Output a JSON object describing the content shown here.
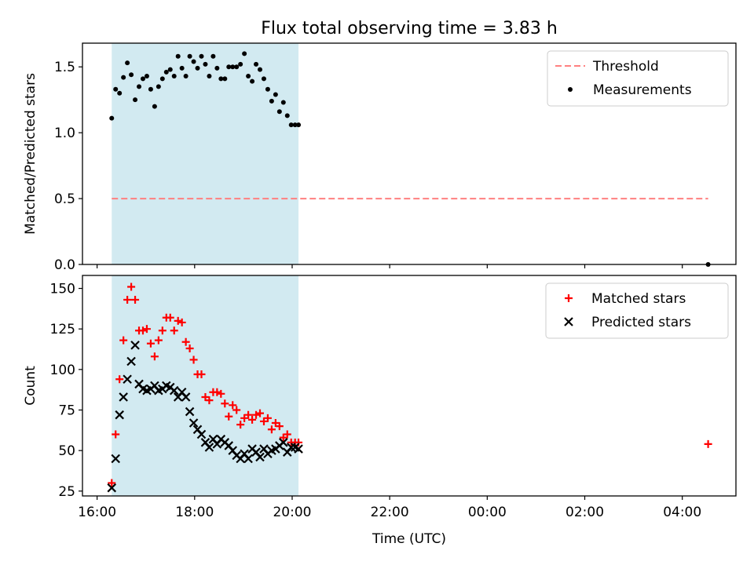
{
  "title": "Flux total observing time = 3.83 h",
  "colors": {
    "shade": "#add8e6",
    "threshold": "#ff8080",
    "measurements": "#000000",
    "matched": "#ff0000",
    "predicted": "#000000"
  },
  "chart_data": [
    {
      "type": "scatter",
      "panel": "top",
      "xlabel": "",
      "ylabel": "Matched/Predicted stars",
      "xlim": [
        15.7,
        29.1
      ],
      "ylim": [
        0.0,
        1.68
      ],
      "yticks": [
        0.0,
        0.5,
        1.0,
        1.5
      ],
      "ytick_labels": [
        "0.0",
        "0.5",
        "1.0",
        "1.5"
      ],
      "xticks": [
        16,
        18,
        20,
        22,
        24,
        26,
        28
      ],
      "xtick_labels": [
        "",
        "",
        "",
        "",
        "",
        "",
        ""
      ],
      "shaded_span": [
        16.3,
        20.13
      ],
      "legend": {
        "loc": "upper right",
        "entries": [
          "Threshold",
          "Measurements"
        ]
      },
      "series": [
        {
          "name": "Threshold",
          "style": "dashed-line",
          "x": [
            16.3,
            28.53
          ],
          "y": [
            0.5,
            0.5
          ]
        },
        {
          "name": "Measurements",
          "style": "dot",
          "x": [
            16.3,
            16.38,
            16.46,
            16.54,
            16.62,
            16.7,
            16.78,
            16.86,
            16.94,
            17.02,
            17.1,
            17.18,
            17.26,
            17.34,
            17.42,
            17.5,
            17.58,
            17.66,
            17.74,
            17.82,
            17.9,
            17.98,
            18.06,
            18.14,
            18.22,
            18.3,
            18.38,
            18.46,
            18.54,
            18.62,
            18.7,
            18.78,
            18.86,
            18.94,
            19.02,
            19.1,
            19.18,
            19.26,
            19.34,
            19.42,
            19.5,
            19.58,
            19.66,
            19.74,
            19.82,
            19.9,
            19.98,
            20.06,
            20.13,
            28.53
          ],
          "y": [
            1.11,
            1.33,
            1.3,
            1.42,
            1.53,
            1.44,
            1.25,
            1.35,
            1.41,
            1.43,
            1.33,
            1.2,
            1.35,
            1.41,
            1.46,
            1.48,
            1.43,
            1.58,
            1.49,
            1.43,
            1.58,
            1.54,
            1.49,
            1.58,
            1.52,
            1.43,
            1.58,
            1.49,
            1.41,
            1.41,
            1.5,
            1.5,
            1.5,
            1.52,
            1.6,
            1.43,
            1.39,
            1.52,
            1.48,
            1.41,
            1.33,
            1.24,
            1.29,
            1.16,
            1.23,
            1.13,
            1.06,
            1.06,
            1.06,
            0.0
          ]
        }
      ]
    },
    {
      "type": "scatter",
      "panel": "bottom",
      "xlabel": "Time (UTC)",
      "ylabel": "Count",
      "xlim": [
        15.7,
        29.1
      ],
      "ylim": [
        22,
        158
      ],
      "yticks": [
        25,
        50,
        75,
        100,
        125,
        150
      ],
      "ytick_labels": [
        "25",
        "50",
        "75",
        "100",
        "125",
        "150"
      ],
      "xticks": [
        16,
        18,
        20,
        22,
        24,
        26,
        28
      ],
      "xtick_labels": [
        "16:00",
        "18:00",
        "20:00",
        "22:00",
        "00:00",
        "02:00",
        "04:00"
      ],
      "shaded_span": [
        16.3,
        20.13
      ],
      "legend": {
        "loc": "upper right",
        "entries": [
          "Matched stars",
          "Predicted stars"
        ]
      },
      "series": [
        {
          "name": "Matched stars",
          "marker": "plus",
          "x": [
            16.3,
            16.38,
            16.46,
            16.54,
            16.62,
            16.7,
            16.78,
            16.86,
            16.94,
            17.02,
            17.1,
            17.18,
            17.26,
            17.34,
            17.42,
            17.5,
            17.58,
            17.66,
            17.74,
            17.82,
            17.9,
            17.98,
            18.06,
            18.14,
            18.22,
            18.3,
            18.38,
            18.46,
            18.54,
            18.62,
            18.7,
            18.78,
            18.86,
            18.94,
            19.02,
            19.1,
            19.18,
            19.26,
            19.34,
            19.42,
            19.5,
            19.58,
            19.66,
            19.74,
            19.82,
            19.9,
            19.98,
            20.06,
            20.13,
            28.53
          ],
          "y": [
            30,
            60,
            94,
            118,
            143,
            151,
            143,
            124,
            124,
            125,
            116,
            108,
            118,
            124,
            132,
            132,
            124,
            130,
            129,
            117,
            113,
            106,
            97,
            97,
            83,
            81,
            86,
            86,
            85,
            79,
            71,
            78,
            75,
            66,
            70,
            72,
            69,
            72,
            73,
            68,
            70,
            63,
            67,
            65,
            58,
            60,
            55,
            55,
            55,
            54
          ]
        },
        {
          "name": "Predicted stars",
          "marker": "x",
          "x": [
            16.3,
            16.38,
            16.46,
            16.54,
            16.62,
            16.7,
            16.78,
            16.86,
            16.94,
            17.02,
            17.1,
            17.18,
            17.26,
            17.34,
            17.42,
            17.5,
            17.58,
            17.66,
            17.74,
            17.82,
            17.9,
            17.98,
            18.06,
            18.14,
            18.22,
            18.3,
            18.38,
            18.46,
            18.54,
            18.62,
            18.7,
            18.78,
            18.86,
            18.94,
            19.02,
            19.1,
            19.18,
            19.26,
            19.34,
            19.42,
            19.5,
            19.58,
            19.66,
            19.74,
            19.82,
            19.9,
            19.98,
            20.06,
            20.13
          ],
          "y": [
            27,
            45,
            72,
            83,
            94,
            105,
            115,
            91,
            88,
            87,
            88,
            90,
            87,
            88,
            90,
            89,
            87,
            83,
            86,
            83,
            74,
            67,
            63,
            60,
            55,
            52,
            57,
            54,
            57,
            55,
            53,
            50,
            47,
            45,
            48,
            45,
            51,
            49,
            46,
            51,
            48,
            50,
            51,
            53,
            55,
            49,
            52,
            52,
            51
          ]
        }
      ]
    }
  ]
}
